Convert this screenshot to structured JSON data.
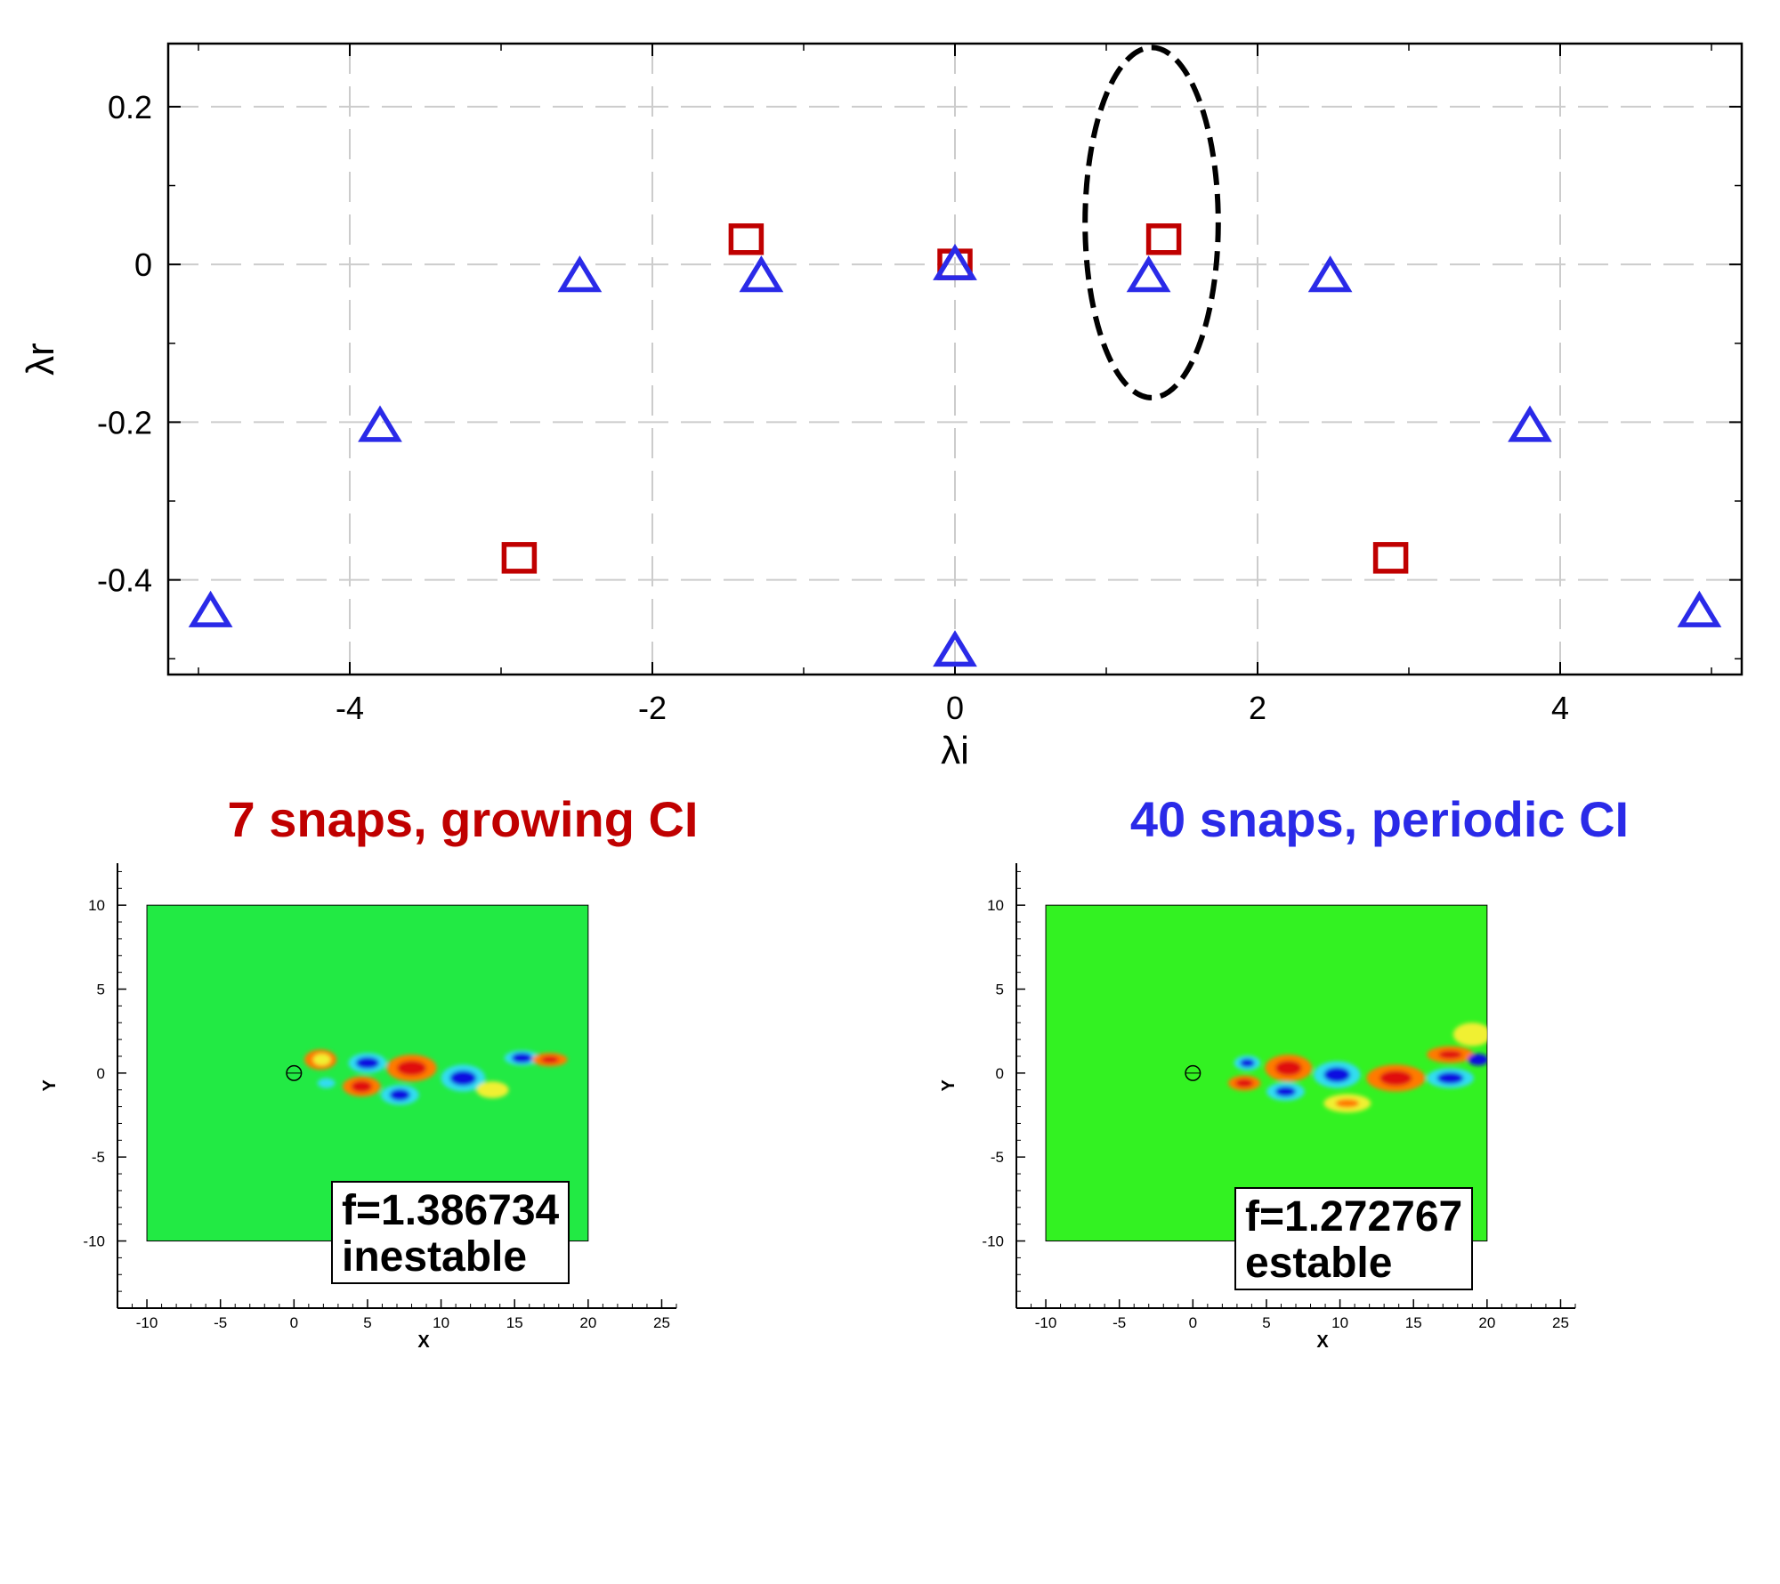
{
  "chart_data": [
    {
      "type": "scatter",
      "xlabel": "λi",
      "ylabel": "λr",
      "xlim": [
        -5.2,
        5.2
      ],
      "ylim": [
        -0.52,
        0.28
      ],
      "xticks": [
        -4,
        -2,
        0,
        2,
        4
      ],
      "yticks": [
        0.2,
        0,
        -0.2,
        -0.4
      ],
      "grid": true,
      "series": [
        {
          "marker": "square",
          "color": "#c00000",
          "points": [
            [
              -1.38,
              0.032
            ],
            [
              1.38,
              0.032
            ],
            [
              0,
              0
            ],
            [
              -2.88,
              -0.372
            ],
            [
              2.88,
              -0.372
            ]
          ]
        },
        {
          "marker": "triangle",
          "color": "#2a2ae8",
          "points": [
            [
              -4.92,
              -0.44
            ],
            [
              4.92,
              -0.44
            ],
            [
              -3.8,
              -0.205
            ],
            [
              3.8,
              -0.205
            ],
            [
              -2.48,
              -0.015
            ],
            [
              2.48,
              -0.015
            ],
            [
              -1.28,
              -0.015
            ],
            [
              1.28,
              -0.015
            ],
            [
              0,
              0
            ],
            [
              0,
              -0.49
            ]
          ]
        }
      ],
      "annotation": {
        "shape": "dashed-ellipse",
        "center": [
          1.3,
          0.053
        ],
        "rx": 0.44,
        "ry": 0.222
      }
    },
    {
      "type": "heatmap",
      "title": "7 snaps, growing CI",
      "title_color": "#c00000",
      "xlabel": "X",
      "ylabel": "Y",
      "xlim": [
        -12,
        26
      ],
      "ylim": [
        -14,
        12.5
      ],
      "xticks": [
        -10,
        -5,
        0,
        5,
        10,
        15,
        20,
        25
      ],
      "yticks": [
        10,
        5,
        0,
        -5,
        -10
      ],
      "domain_x": [
        -10,
        20
      ],
      "domain_y": [
        -10,
        10
      ],
      "background_color": "#22ea44",
      "text_lines": [
        "f=1.386734",
        "inestable"
      ]
    },
    {
      "type": "heatmap",
      "title": "40 snaps, periodic CI",
      "title_color": "#2a2ae8",
      "xlabel": "X",
      "ylabel": "Y",
      "xlim": [
        -12,
        26
      ],
      "ylim": [
        -14,
        12.5
      ],
      "xticks": [
        -10,
        -5,
        0,
        5,
        10,
        15,
        20,
        25
      ],
      "yticks": [
        10,
        5,
        0,
        -5,
        -10
      ],
      "domain_x": [
        -10,
        20
      ],
      "domain_y": [
        -10,
        10
      ],
      "background_color": "#33f222",
      "text_lines": [
        "f=1.272767",
        "estable"
      ]
    }
  ]
}
